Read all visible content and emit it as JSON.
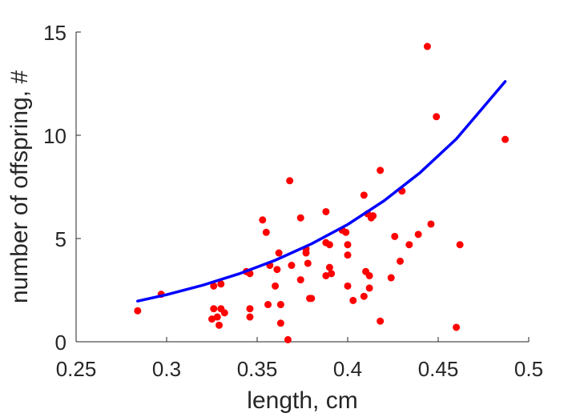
{
  "chart_data": {
    "type": "scatter",
    "title": "",
    "xlabel": "length, cm",
    "ylabel": "number of offspring, #",
    "xlim": [
      0.25,
      0.5
    ],
    "ylim": [
      0,
      15
    ],
    "xticks": [
      0.25,
      0.3,
      0.35,
      0.4,
      0.45,
      0.5
    ],
    "xtick_labels": [
      "0.25",
      "0.3",
      "0.35",
      "0.4",
      "0.45",
      "0.5"
    ],
    "yticks": [
      0,
      5,
      10,
      15
    ],
    "ytick_labels": [
      "0",
      "5",
      "10",
      "15"
    ],
    "grid": false,
    "legend": "none",
    "series": [
      {
        "type": "scatter",
        "color": "#ff0000",
        "points": [
          [
            0.284,
            1.5
          ],
          [
            0.297,
            2.3
          ],
          [
            0.325,
            1.1
          ],
          [
            0.326,
            1.6
          ],
          [
            0.326,
            2.7
          ],
          [
            0.328,
            1.2
          ],
          [
            0.329,
            0.8
          ],
          [
            0.33,
            2.8
          ],
          [
            0.33,
            1.6
          ],
          [
            0.332,
            1.4
          ],
          [
            0.344,
            3.4
          ],
          [
            0.346,
            1.6
          ],
          [
            0.346,
            1.2
          ],
          [
            0.346,
            3.3
          ],
          [
            0.353,
            5.9
          ],
          [
            0.355,
            5.3
          ],
          [
            0.356,
            1.8
          ],
          [
            0.357,
            3.7
          ],
          [
            0.36,
            2.7
          ],
          [
            0.361,
            3.5
          ],
          [
            0.362,
            4.3
          ],
          [
            0.363,
            0.9
          ],
          [
            0.363,
            1.8
          ],
          [
            0.367,
            0.1
          ],
          [
            0.368,
            7.8
          ],
          [
            0.369,
            3.7
          ],
          [
            0.374,
            6.0
          ],
          [
            0.374,
            3.0
          ],
          [
            0.377,
            4.5
          ],
          [
            0.377,
            4.3
          ],
          [
            0.378,
            3.8
          ],
          [
            0.379,
            2.1
          ],
          [
            0.38,
            2.1
          ],
          [
            0.388,
            6.3
          ],
          [
            0.388,
            4.8
          ],
          [
            0.388,
            3.2
          ],
          [
            0.39,
            3.6
          ],
          [
            0.39,
            4.7
          ],
          [
            0.391,
            3.3
          ],
          [
            0.397,
            5.4
          ],
          [
            0.399,
            5.3
          ],
          [
            0.4,
            2.7
          ],
          [
            0.4,
            4.7
          ],
          [
            0.4,
            4.2
          ],
          [
            0.403,
            2.0
          ],
          [
            0.409,
            7.1
          ],
          [
            0.409,
            2.2
          ],
          [
            0.41,
            3.4
          ],
          [
            0.411,
            6.2
          ],
          [
            0.412,
            3.2
          ],
          [
            0.412,
            2.6
          ],
          [
            0.413,
            6.0
          ],
          [
            0.414,
            6.1
          ],
          [
            0.418,
            8.3
          ],
          [
            0.418,
            1.0
          ],
          [
            0.424,
            3.1
          ],
          [
            0.426,
            5.1
          ],
          [
            0.429,
            3.9
          ],
          [
            0.43,
            7.3
          ],
          [
            0.434,
            4.7
          ],
          [
            0.439,
            5.2
          ],
          [
            0.444,
            14.3
          ],
          [
            0.446,
            5.7
          ],
          [
            0.449,
            10.9
          ],
          [
            0.46,
            0.7
          ],
          [
            0.462,
            4.7
          ],
          [
            0.487,
            9.8
          ]
        ]
      },
      {
        "type": "line",
        "color": "#0000ff",
        "fit": "exponential",
        "points": [
          [
            0.284,
            1.97
          ],
          [
            0.3,
            2.28
          ],
          [
            0.32,
            2.74
          ],
          [
            0.34,
            3.29
          ],
          [
            0.36,
            3.95
          ],
          [
            0.38,
            4.74
          ],
          [
            0.4,
            5.68
          ],
          [
            0.42,
            6.82
          ],
          [
            0.44,
            8.19
          ],
          [
            0.46,
            9.82
          ],
          [
            0.487,
            12.6
          ]
        ]
      }
    ]
  }
}
